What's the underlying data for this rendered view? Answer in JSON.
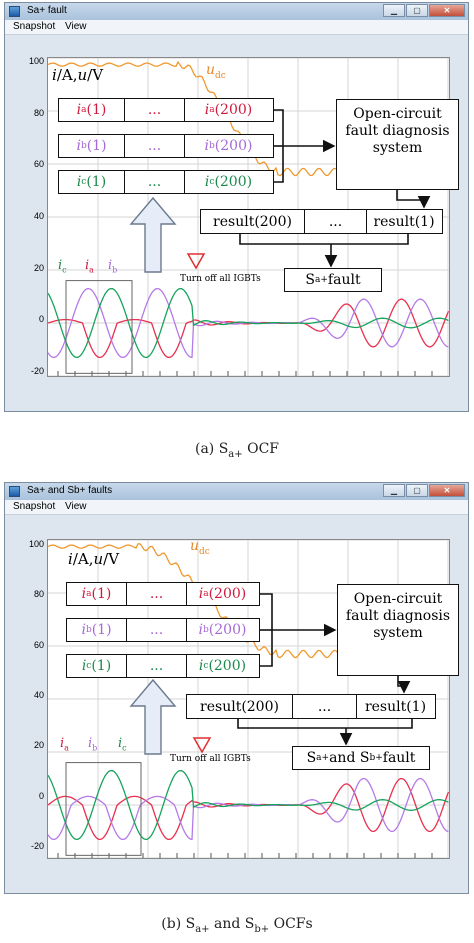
{
  "colors": {
    "ia": "#e8304f",
    "ib": "#b67ae6",
    "ic": "#17a45c",
    "udc": "#f0982e"
  },
  "panels": [
    {
      "window_title": "Sa+ fault",
      "menu": [
        "Snapshot",
        "View"
      ],
      "yticks": [
        "100",
        "80",
        "60",
        "40",
        "20",
        "0",
        "-20"
      ],
      "axis_label_i": "i",
      "axis_label_sep": "/A,",
      "axis_label_u": "u",
      "axis_label_unit": "/V",
      "udc_label": "u",
      "udc_sub": "dc",
      "rows": [
        {
          "cells": [
            {
              "sym": "i",
              "sub": "a",
              "arg": "(1)"
            },
            {
              "txt": "..."
            },
            {
              "sym": "i",
              "sub": "a",
              "arg": "(200)"
            }
          ]
        },
        {
          "cells": [
            {
              "sym": "i",
              "sub": "b",
              "arg": "(1)"
            },
            {
              "txt": "..."
            },
            {
              "sym": "i",
              "sub": "b",
              "arg": "(200)"
            }
          ]
        },
        {
          "cells": [
            {
              "sym": "i",
              "sub": "c",
              "arg": "(1)"
            },
            {
              "txt": "..."
            },
            {
              "sym": "i",
              "sub": "c",
              "arg": "(200)"
            }
          ]
        }
      ],
      "diagnosis_text": [
        "Open-circuit",
        "fault diagnosis",
        "system"
      ],
      "results": [
        "result(200)",
        "...",
        "result(1)"
      ],
      "fault_label": "S",
      "fault_sub": "a+",
      "fault_suffix": " fault",
      "turn_off_text": "Turn off all IGBTs",
      "legend_order": [
        "c",
        "a",
        "b"
      ],
      "caption": {
        "prefix": "(a) S",
        "sub": "a+",
        "suffix": " OCF"
      }
    },
    {
      "window_title": "Sa+ and Sb+ faults",
      "menu": [
        "Snapshot",
        "View"
      ],
      "yticks": [
        "100",
        "80",
        "60",
        "40",
        "20",
        "0",
        "-20"
      ],
      "axis_label_i": "i",
      "axis_label_sep": "/A,",
      "axis_label_u": "u",
      "axis_label_unit": "/V",
      "udc_label": "u",
      "udc_sub": "dc",
      "rows": [
        {
          "cells": [
            {
              "sym": "i",
              "sub": "a",
              "arg": "(1)"
            },
            {
              "txt": "..."
            },
            {
              "sym": "i",
              "sub": "a",
              "arg": "(200)"
            }
          ]
        },
        {
          "cells": [
            {
              "sym": "i",
              "sub": "b",
              "arg": "(1)"
            },
            {
              "txt": "..."
            },
            {
              "sym": "i",
              "sub": "b",
              "arg": "(200)"
            }
          ]
        },
        {
          "cells": [
            {
              "sym": "i",
              "sub": "c",
              "arg": "(1)"
            },
            {
              "txt": "..."
            },
            {
              "sym": "i",
              "sub": "c",
              "arg": "(200)"
            }
          ]
        }
      ],
      "diagnosis_text": [
        "Open-circuit",
        "fault diagnosis",
        "system"
      ],
      "results": [
        "result(200)",
        "...",
        "result(1)"
      ],
      "fault_label": "S",
      "fault_sub": "a+",
      "fault_mid": " and S",
      "fault_sub2": "b+",
      "fault_suffix": " fault",
      "turn_off_text": "Turn off all IGBTs",
      "legend_order": [
        "a",
        "b",
        "c"
      ],
      "caption": {
        "prefix": "(b) S",
        "sub": "a+",
        "mid": " and S",
        "sub2": "b+",
        "suffix": " OCFs"
      }
    }
  ]
}
